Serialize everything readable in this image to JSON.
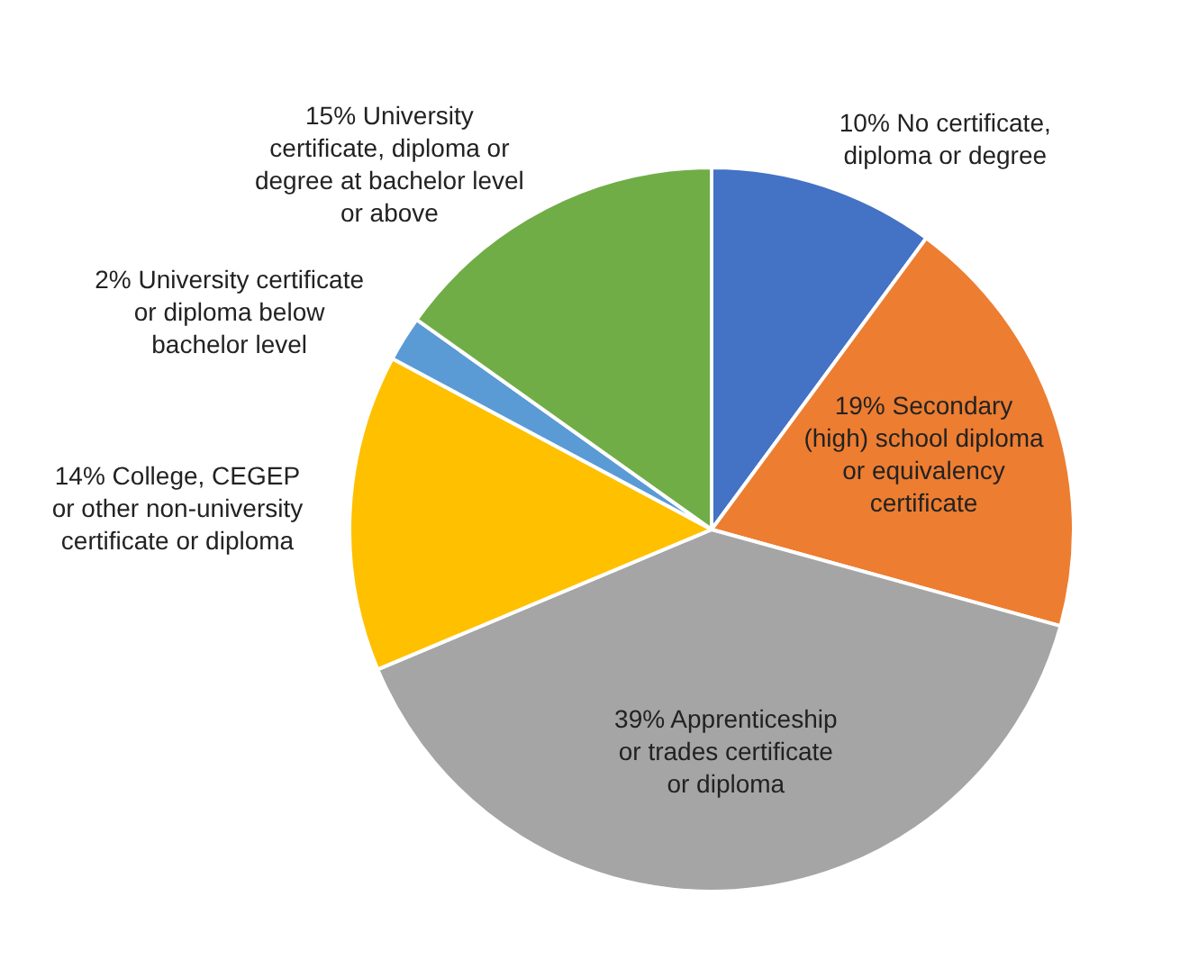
{
  "chart_data": {
    "type": "pie",
    "categories": [
      "No certificate, diploma or degree",
      "Secondary (high) school diploma or equivalency certificate",
      "Apprenticeship or trades certificate or diploma",
      "College, CEGEP or other non-university certificate or diploma",
      "University certificate or diploma below bachelor level",
      "University certificate, diploma or degree at bachelor level or above"
    ],
    "values": [
      10,
      19,
      39,
      14,
      2,
      15
    ],
    "value_labels": [
      "10%",
      "19%",
      "39%",
      "14%",
      "2%",
      "15%"
    ],
    "colors": [
      "#4472c4",
      "#ed7d31",
      "#a5a5a5",
      "#ffc000",
      "#5b9bd5",
      "#70ad47"
    ],
    "legend": false
  }
}
